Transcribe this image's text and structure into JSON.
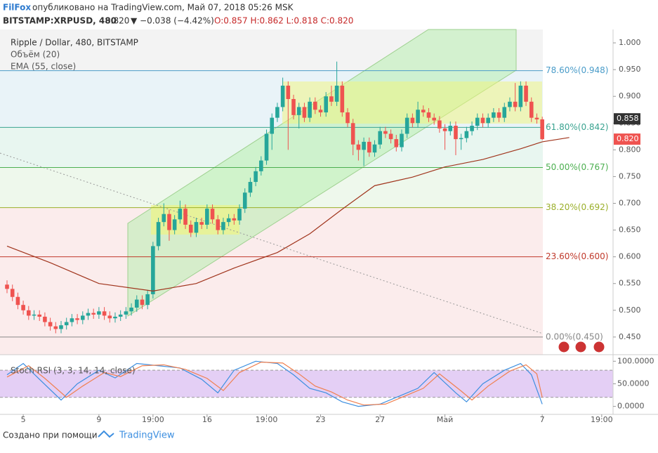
{
  "header": {
    "brand": "FilFox",
    "published": "опубликовано на TradingView.com, Май 07, 2018 05:26 MSK",
    "symbol": "BITSTAMP:XRPUSD, 480",
    "last": "0.820",
    "change": "▼ −0.038 (−4.42%)",
    "ohlc": "O:0.857 H:0.862 L:0.818 C:0.820"
  },
  "footer": {
    "made_with": "Создано при помощи",
    "brand": "TradingView"
  },
  "chart_data": [
    {
      "type": "candlestick",
      "title": "Ripple / Dollar, 480, BITSTAMP",
      "legend": [
        "Объём (20)",
        "EMA (55, close)"
      ],
      "up_color": "#26a69a",
      "down_color": "#ef5350",
      "candles": [
        [
          0.548,
          0.556,
          0.532,
          0.54
        ],
        [
          0.54,
          0.548,
          0.517,
          0.525
        ],
        [
          0.525,
          0.533,
          0.502,
          0.51
        ],
        [
          0.51,
          0.518,
          0.492,
          0.5
        ],
        [
          0.5,
          0.508,
          0.482,
          0.49
        ],
        [
          0.49,
          0.5,
          0.482,
          0.492
        ],
        [
          0.492,
          0.5,
          0.48,
          0.488
        ],
        [
          0.488,
          0.496,
          0.47,
          0.478
        ],
        [
          0.478,
          0.486,
          0.462,
          0.47
        ],
        [
          0.47,
          0.478,
          0.457,
          0.465
        ],
        [
          0.465,
          0.48,
          0.457,
          0.472
        ],
        [
          0.472,
          0.486,
          0.464,
          0.478
        ],
        [
          0.478,
          0.493,
          0.47,
          0.485
        ],
        [
          0.485,
          0.493,
          0.474,
          0.482
        ],
        [
          0.482,
          0.498,
          0.474,
          0.49
        ],
        [
          0.49,
          0.503,
          0.482,
          0.495
        ],
        [
          0.495,
          0.503,
          0.484,
          0.492
        ],
        [
          0.492,
          0.506,
          0.484,
          0.498
        ],
        [
          0.498,
          0.506,
          0.482,
          0.49
        ],
        [
          0.49,
          0.498,
          0.477,
          0.485
        ],
        [
          0.485,
          0.496,
          0.477,
          0.488
        ],
        [
          0.488,
          0.5,
          0.48,
          0.492
        ],
        [
          0.492,
          0.506,
          0.484,
          0.498
        ],
        [
          0.498,
          0.513,
          0.49,
          0.505
        ],
        [
          0.505,
          0.528,
          0.497,
          0.52
        ],
        [
          0.52,
          0.528,
          0.502,
          0.51
        ],
        [
          0.51,
          0.538,
          0.502,
          0.53
        ],
        [
          0.53,
          0.628,
          0.522,
          0.62
        ],
        [
          0.62,
          0.673,
          0.612,
          0.665
        ],
        [
          0.665,
          0.7,
          0.657,
          0.68
        ],
        [
          0.68,
          0.688,
          0.63,
          0.65
        ],
        [
          0.65,
          0.678,
          0.642,
          0.67
        ],
        [
          0.67,
          0.705,
          0.662,
          0.69
        ],
        [
          0.69,
          0.698,
          0.652,
          0.66
        ],
        [
          0.66,
          0.668,
          0.637,
          0.645
        ],
        [
          0.645,
          0.673,
          0.637,
          0.665
        ],
        [
          0.665,
          0.673,
          0.652,
          0.66
        ],
        [
          0.66,
          0.698,
          0.652,
          0.69
        ],
        [
          0.69,
          0.698,
          0.662,
          0.67
        ],
        [
          0.67,
          0.678,
          0.642,
          0.65
        ],
        [
          0.65,
          0.673,
          0.642,
          0.665
        ],
        [
          0.665,
          0.68,
          0.657,
          0.672
        ],
        [
          0.672,
          0.68,
          0.66,
          0.668
        ],
        [
          0.668,
          0.698,
          0.66,
          0.69
        ],
        [
          0.69,
          0.728,
          0.682,
          0.72
        ],
        [
          0.72,
          0.748,
          0.712,
          0.74
        ],
        [
          0.74,
          0.768,
          0.732,
          0.76
        ],
        [
          0.76,
          0.788,
          0.752,
          0.78
        ],
        [
          0.78,
          0.838,
          0.772,
          0.83
        ],
        [
          0.83,
          0.868,
          0.8,
          0.86
        ],
        [
          0.86,
          0.888,
          0.852,
          0.88
        ],
        [
          0.88,
          0.935,
          0.872,
          0.92
        ],
        [
          0.92,
          0.928,
          0.8,
          0.895
        ],
        [
          0.895,
          0.903,
          0.857,
          0.865
        ],
        [
          0.865,
          0.888,
          0.84,
          0.88
        ],
        [
          0.88,
          0.888,
          0.852,
          0.86
        ],
        [
          0.86,
          0.898,
          0.852,
          0.89
        ],
        [
          0.89,
          0.898,
          0.867,
          0.875
        ],
        [
          0.875,
          0.883,
          0.862,
          0.87
        ],
        [
          0.87,
          0.908,
          0.862,
          0.9
        ],
        [
          0.9,
          0.92,
          0.882,
          0.89
        ],
        [
          0.89,
          0.965,
          0.882,
          0.92
        ],
        [
          0.92,
          0.928,
          0.862,
          0.87
        ],
        [
          0.87,
          0.878,
          0.842,
          0.85
        ],
        [
          0.85,
          0.858,
          0.79,
          0.81
        ],
        [
          0.81,
          0.818,
          0.78,
          0.8
        ],
        [
          0.8,
          0.823,
          0.77,
          0.815
        ],
        [
          0.815,
          0.823,
          0.787,
          0.795
        ],
        [
          0.795,
          0.818,
          0.787,
          0.81
        ],
        [
          0.81,
          0.843,
          0.802,
          0.835
        ],
        [
          0.835,
          0.843,
          0.822,
          0.83
        ],
        [
          0.83,
          0.838,
          0.812,
          0.82
        ],
        [
          0.82,
          0.828,
          0.797,
          0.805
        ],
        [
          0.805,
          0.838,
          0.797,
          0.83
        ],
        [
          0.83,
          0.868,
          0.822,
          0.86
        ],
        [
          0.86,
          0.868,
          0.842,
          0.85
        ],
        [
          0.85,
          0.89,
          0.842,
          0.875
        ],
        [
          0.875,
          0.883,
          0.862,
          0.87
        ],
        [
          0.87,
          0.878,
          0.852,
          0.86
        ],
        [
          0.86,
          0.868,
          0.847,
          0.855
        ],
        [
          0.855,
          0.863,
          0.832,
          0.84
        ],
        [
          0.84,
          0.848,
          0.8,
          0.835
        ],
        [
          0.835,
          0.853,
          0.827,
          0.845
        ],
        [
          0.845,
          0.853,
          0.79,
          0.82
        ],
        [
          0.82,
          0.83,
          0.8,
          0.822
        ],
        [
          0.822,
          0.843,
          0.814,
          0.835
        ],
        [
          0.835,
          0.853,
          0.827,
          0.845
        ],
        [
          0.845,
          0.868,
          0.837,
          0.86
        ],
        [
          0.86,
          0.868,
          0.842,
          0.85
        ],
        [
          0.85,
          0.868,
          0.842,
          0.86
        ],
        [
          0.86,
          0.878,
          0.852,
          0.87
        ],
        [
          0.87,
          0.878,
          0.852,
          0.86
        ],
        [
          0.86,
          0.888,
          0.852,
          0.88
        ],
        [
          0.88,
          0.898,
          0.872,
          0.89
        ],
        [
          0.89,
          0.925,
          0.872,
          0.88
        ],
        [
          0.88,
          0.928,
          0.872,
          0.92
        ],
        [
          0.92,
          0.928,
          0.882,
          0.89
        ],
        [
          0.89,
          0.898,
          0.852,
          0.86
        ],
        [
          0.86,
          0.868,
          0.849,
          0.857
        ],
        [
          0.857,
          0.862,
          0.818,
          0.82
        ]
      ],
      "ema": {
        "color": "#a0341c",
        "x": [
          0,
          8,
          17,
          27,
          35,
          42,
          50,
          56,
          62,
          68,
          75,
          81,
          88,
          95,
          99,
          104
        ],
        "values": [
          0.62,
          0.589,
          0.55,
          0.536,
          0.55,
          0.579,
          0.608,
          0.643,
          0.689,
          0.733,
          0.749,
          0.768,
          0.782,
          0.802,
          0.815,
          0.823
        ]
      },
      "fib": [
        {
          "label": "78.60%(0.948)",
          "value": 0.948,
          "color": "#4a9cc9",
          "band": "#e9f3f8"
        },
        {
          "label": "61.80%(0.842)",
          "value": 0.842,
          "color": "#3aa390",
          "band": "#e8f6f0"
        },
        {
          "label": "50.00%(0.767)",
          "value": 0.767,
          "color": "#4caf50",
          "band": "#eef8ec"
        },
        {
          "label": "38.20%(0.692)",
          "value": 0.692,
          "color": "#9aaf2a",
          "band": "#fbecec"
        },
        {
          "label": "23.60%(0.600)",
          "value": 0.6,
          "color": "#c0392b",
          "band": "#fbecec"
        },
        {
          "label": "0.00%(0.450)",
          "value": 0.45,
          "color": "#888888",
          "band": "#fbecec"
        }
      ],
      "price_tags": [
        {
          "value": 0.858,
          "label": "0.858",
          "color": "#333333"
        },
        {
          "value": 0.82,
          "label": "0.820",
          "color": "#ef5350"
        }
      ],
      "xlim": [
        -1.3,
        112.1
      ],
      "ylim": [
        0.417,
        1.025
      ],
      "xticks": [
        {
          "value": 3,
          "label": "5"
        },
        {
          "value": 17,
          "label": "9"
        },
        {
          "value": 27,
          "label": "19:00"
        },
        {
          "value": 37,
          "label": "16"
        },
        {
          "value": 48,
          "label": "19:00"
        },
        {
          "value": 58,
          "label": "23"
        },
        {
          "value": 69,
          "label": "27"
        },
        {
          "value": 81,
          "label": "Май"
        },
        {
          "value": 99,
          "label": "7"
        },
        {
          "value": 110,
          "label": "19:00"
        }
      ],
      "yticks": [
        {
          "value": 1,
          "label": "1.000"
        },
        {
          "value": 0.95,
          "label": "0.950"
        },
        {
          "value": 0.9,
          "label": "0.900"
        },
        {
          "value": 0.85,
          "label": "0.850"
        },
        {
          "value": 0.8,
          "label": "0.800"
        },
        {
          "value": 0.75,
          "label": "0.750"
        },
        {
          "value": 0.7,
          "label": "0.700"
        },
        {
          "value": 0.65,
          "label": "0.650"
        },
        {
          "value": 0.6,
          "label": "0.600"
        },
        {
          "value": 0.55,
          "label": "0.550"
        },
        {
          "value": 0.5,
          "label": "0.500"
        },
        {
          "value": 0.45,
          "label": "0.450"
        }
      ]
    },
    {
      "type": "line",
      "title": "Stoch RSI (3, 3, 14, 14, close)",
      "ylim": [
        -17.7,
        114.5
      ],
      "bands": [
        20,
        80
      ],
      "yticks": [
        {
          "value": 100,
          "label": "100.0000"
        },
        {
          "value": 50,
          "label": "50.0000"
        },
        {
          "value": 0,
          "label": "0.0000"
        }
      ],
      "series": [
        {
          "color": "#3d8fe0",
          "x": [
            0,
            3,
            6,
            10,
            13,
            17,
            20,
            24,
            28,
            32,
            36,
            39,
            42,
            46,
            50,
            53,
            56,
            59,
            62,
            65,
            69,
            72,
            76,
            79,
            83,
            85,
            88,
            92,
            95,
            97,
            99
          ],
          "values": [
            70,
            95,
            60,
            14,
            50,
            80,
            63,
            95,
            90,
            85,
            60,
            30,
            80,
            100,
            95,
            70,
            40,
            30,
            10,
            0,
            5,
            20,
            40,
            75,
            30,
            10,
            50,
            80,
            95,
            70,
            5
          ]
        },
        {
          "color": "#f08050",
          "x": [
            0,
            4,
            7,
            11,
            14,
            18,
            21,
            25,
            29,
            33,
            37,
            40,
            43,
            47,
            51,
            54,
            57,
            60,
            63,
            66,
            70,
            73,
            77,
            80,
            84,
            86,
            89,
            93,
            96,
            98,
            99
          ],
          "values": [
            65,
            90,
            62,
            20,
            45,
            75,
            66,
            90,
            92,
            82,
            62,
            35,
            75,
            98,
            96,
            72,
            45,
            32,
            14,
            3,
            5,
            20,
            40,
            72,
            34,
            14,
            45,
            78,
            92,
            72,
            20
          ]
        }
      ]
    }
  ]
}
